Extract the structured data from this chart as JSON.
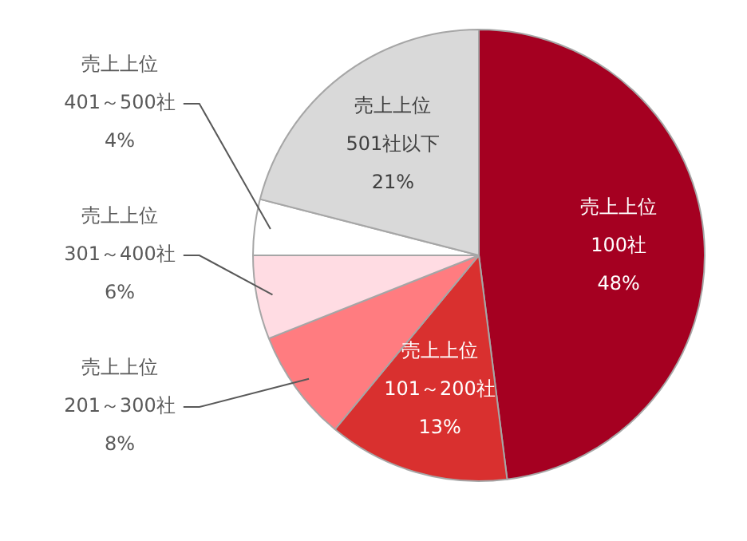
{
  "chart_data": {
    "type": "pie",
    "categories": [
      "売上上位\n100社",
      "売上上位\n101～200社",
      "売上上位\n201～300社",
      "売上上位\n301～400社",
      "売上上位\n401～500社",
      "売上上位\n501社以下"
    ],
    "values": [
      48,
      13,
      8,
      6,
      4,
      21
    ],
    "colors": [
      "#a50021",
      "#d9302f",
      "#ff7c80",
      "#ffdce3",
      "#ffffff",
      "#d9d9d9"
    ],
    "value_labels": [
      "48%",
      "13%",
      "8%",
      "6%",
      "4%",
      "21%"
    ],
    "legend": false
  }
}
